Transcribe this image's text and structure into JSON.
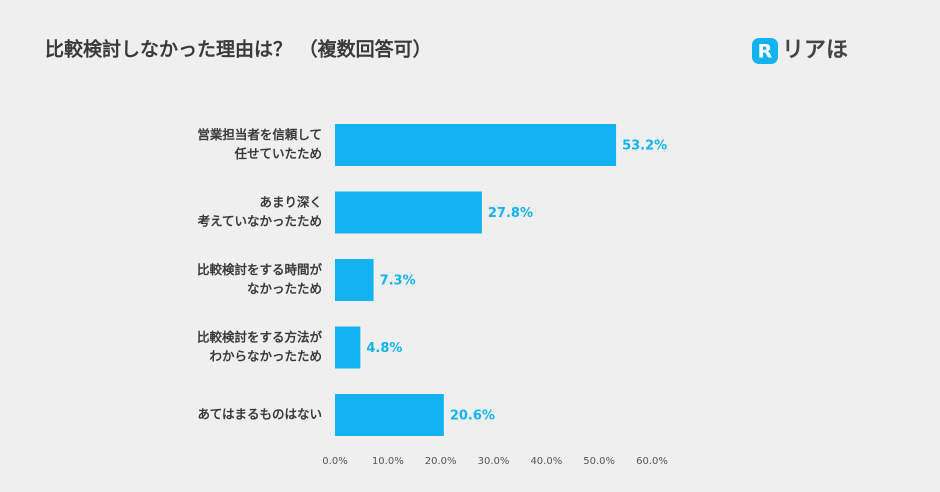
{
  "chart_data": {
    "type": "bar",
    "orientation": "horizontal",
    "title": "比較検討しなかった理由は？ （複数回答可）",
    "logo": {
      "mark": "R",
      "text": "リアほ"
    },
    "categories": [
      [
        "営業担当者を信頼して",
        "任せていたため"
      ],
      [
        "あまり深く",
        "考えていなかったため"
      ],
      [
        "比較検討をする時間が",
        "なかったため"
      ],
      [
        "比較検討をする方法が",
        "わからなかったため"
      ],
      [
        "あてはまるものはない"
      ]
    ],
    "values": [
      53.2,
      27.8,
      7.3,
      4.8,
      20.6
    ],
    "value_labels": [
      "53.2%",
      "27.8%",
      "7.3%",
      "4.8%",
      "20.6%"
    ],
    "color": "#12b3f0",
    "xlim": [
      0,
      60
    ],
    "xticks": [
      {
        "value": 0,
        "label": "0.0%"
      },
      {
        "value": 10,
        "label": "10.0%"
      },
      {
        "value": 20,
        "label": "20.0%"
      },
      {
        "value": 30,
        "label": "30.0%"
      },
      {
        "value": 40,
        "label": "40.0%"
      },
      {
        "value": 50,
        "label": "50.0%"
      },
      {
        "value": 60,
        "label": "60.0%"
      }
    ]
  }
}
